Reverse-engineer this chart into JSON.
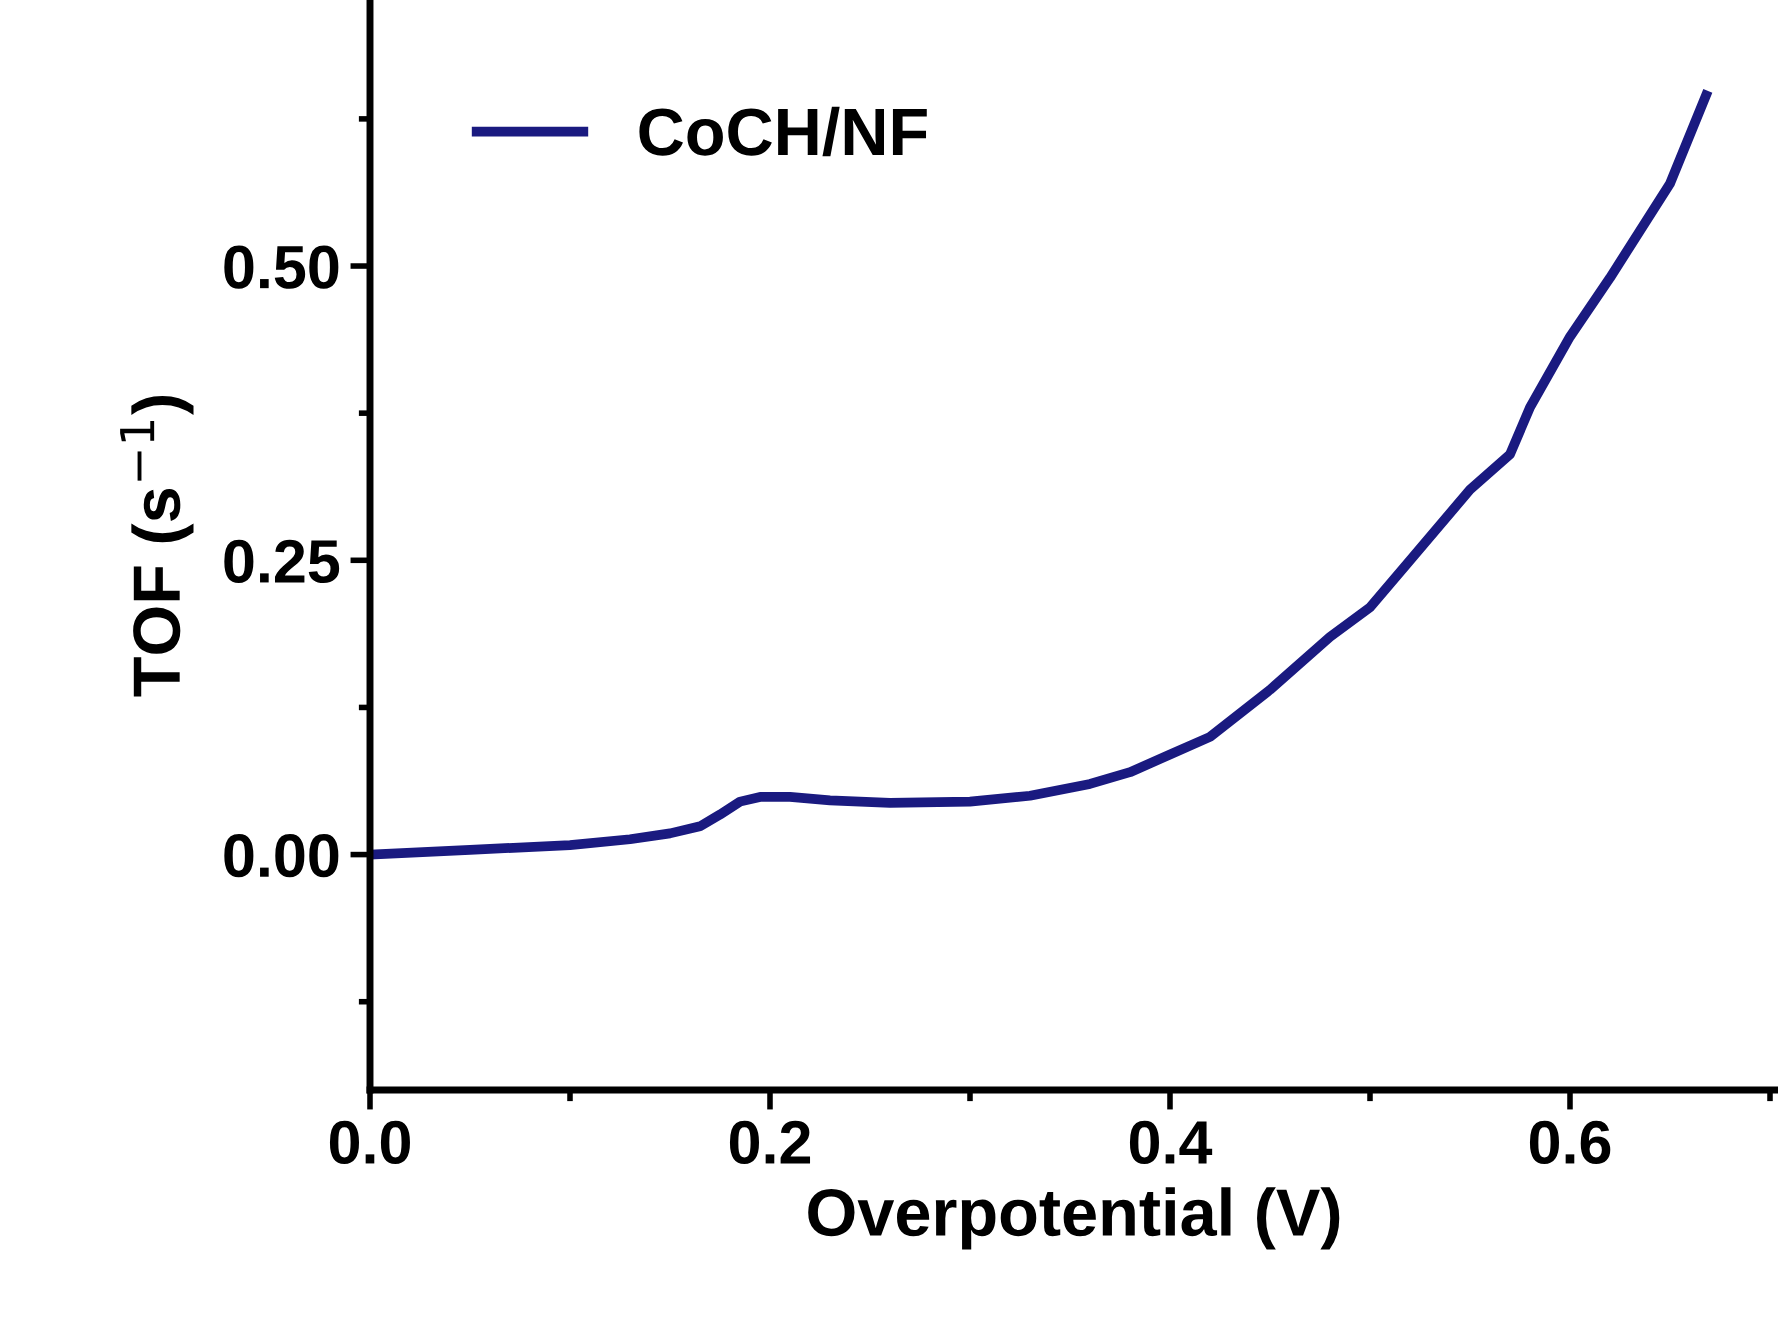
{
  "chart_data": {
    "type": "line",
    "xlabel": "Overpotential (V)",
    "ylabel": "TOF (s$^{−1}$)",
    "x": [
      0,
      0.05,
      0.1,
      0.13,
      0.15,
      0.165,
      0.175,
      0.185,
      0.195,
      0.21,
      0.23,
      0.26,
      0.3,
      0.33,
      0.36,
      0.38,
      0.4,
      0.42,
      0.45,
      0.48,
      0.5,
      0.52,
      0.55,
      0.57,
      0.58,
      0.6,
      0.62,
      0.65,
      0.668
    ],
    "series": [
      {
        "name": "CoCH/NF",
        "color": "#1a1a80",
        "values": [
          0,
          0.004,
          0.008,
          0.013,
          0.018,
          0.024,
          0.034,
          0.045,
          0.049,
          0.049,
          0.046,
          0.044,
          0.045,
          0.05,
          0.06,
          0.07,
          0.085,
          0.1,
          0.14,
          0.185,
          0.21,
          0.25,
          0.31,
          0.34,
          0.38,
          0.44,
          0.49,
          0.57,
          0.645
        ]
      }
    ],
    "xlim": [
      0,
      0.704
    ],
    "ylim": [
      -0.2,
      0.726
    ],
    "xticks": [
      {
        "value": 0,
        "label": "0.0"
      },
      {
        "value": 0.2,
        "label": "0.2"
      },
      {
        "value": 0.4,
        "label": "0.4"
      },
      {
        "value": 0.6,
        "label": "0.6"
      }
    ],
    "yticks": [
      {
        "value": 0,
        "label": "0.00"
      },
      {
        "value": 0.25,
        "label": "0.25"
      },
      {
        "value": 0.5,
        "label": "0.50"
      }
    ],
    "legend": "top left",
    "grid": false,
    "marker": "none",
    "line_style": "solid"
  }
}
